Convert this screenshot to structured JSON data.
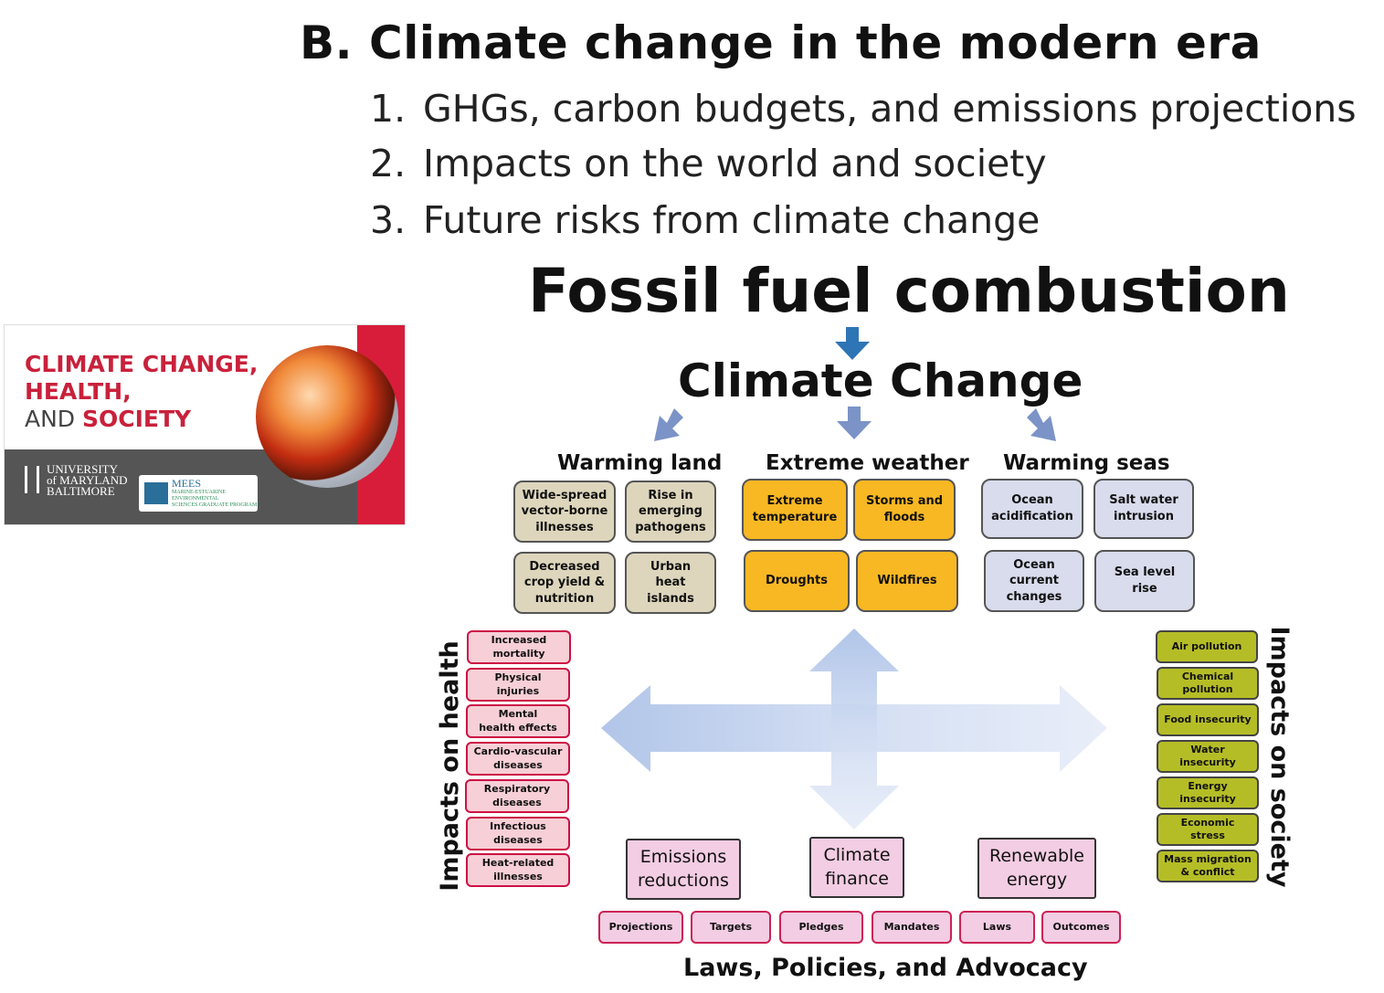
{
  "slide": {
    "heading": "B. Climate change in the modern era",
    "outline": [
      {
        "num": "1.",
        "text": "GHGs, carbon budgets, and emissions projections"
      },
      {
        "num": "2.",
        "text": "Impacts on the world and society"
      },
      {
        "num": "3.",
        "text": "Future risks from climate change"
      }
    ]
  },
  "banner": {
    "line1": "CLIMATE CHANGE,",
    "line2": "HEALTH,",
    "line3_thin": "AND ",
    "line3_bold": "SOCIETY",
    "university": [
      "UNIVERSITY",
      "of MARYLAND",
      "BALTIMORE"
    ],
    "partner_logo": "MEES",
    "partner_sub": "MARINE-ESTUARINE\nENVIRONMENTAL\nSCIENCES GRADUATE PROGRAM",
    "colors": {
      "red": "#d81d3a",
      "gray": "#555555"
    }
  },
  "diagram": {
    "source": "Fossil fuel combustion",
    "center": "Climate Change",
    "categories": {
      "land": "Warming land",
      "weather": "Extreme weather",
      "seas": "Warming seas"
    },
    "land_boxes": [
      "Wide-spread\nvector-borne\nillnesses",
      "Rise in\nemerging\npathogens",
      "Decreased\ncrop yield &\nnutrition",
      "Urban\nheat\nislands"
    ],
    "weather_boxes": [
      "Extreme\ntemperature",
      "Storms and\nfloods",
      "Droughts",
      "Wildfires"
    ],
    "sea_boxes": [
      "Ocean\nacidification",
      "Salt water\nintrusion",
      "Ocean\ncurrent\nchanges",
      "Sea level\nrise"
    ],
    "health_label": "Impacts on health",
    "health_boxes": [
      "Increased\nmortality",
      "Physical\ninjuries",
      "Mental\nhealth effects",
      "Cardio-vascular\ndiseases",
      "Respiratory\ndiseases",
      "Infectious\ndiseases",
      "Heat-related\nillnesses"
    ],
    "society_label": "Impacts on society",
    "society_boxes": [
      "Air pollution",
      "Chemical\npollution",
      "Food insecurity",
      "Water\ninsecurity",
      "Energy\ninsecurity",
      "Economic\nstress",
      "Mass migration\n& conflict"
    ],
    "policy_boxes": [
      "Emissions\nreductions",
      "Climate\nfinance",
      "Renewable\nenergy"
    ],
    "policy_sub": [
      "Projections",
      "Targets",
      "Pledges",
      "Mandates",
      "Laws",
      "Outcomes"
    ],
    "bottom_label": "Laws, Policies, and Advocacy",
    "colors": {
      "land": "#ddd6bc",
      "weather": "#f8b823",
      "sea": "#d8dcec",
      "health": "#f7cfd6",
      "society": "#b5bd26",
      "policy": "#f3cde3",
      "arrow_blue": "#2e75b6"
    }
  }
}
